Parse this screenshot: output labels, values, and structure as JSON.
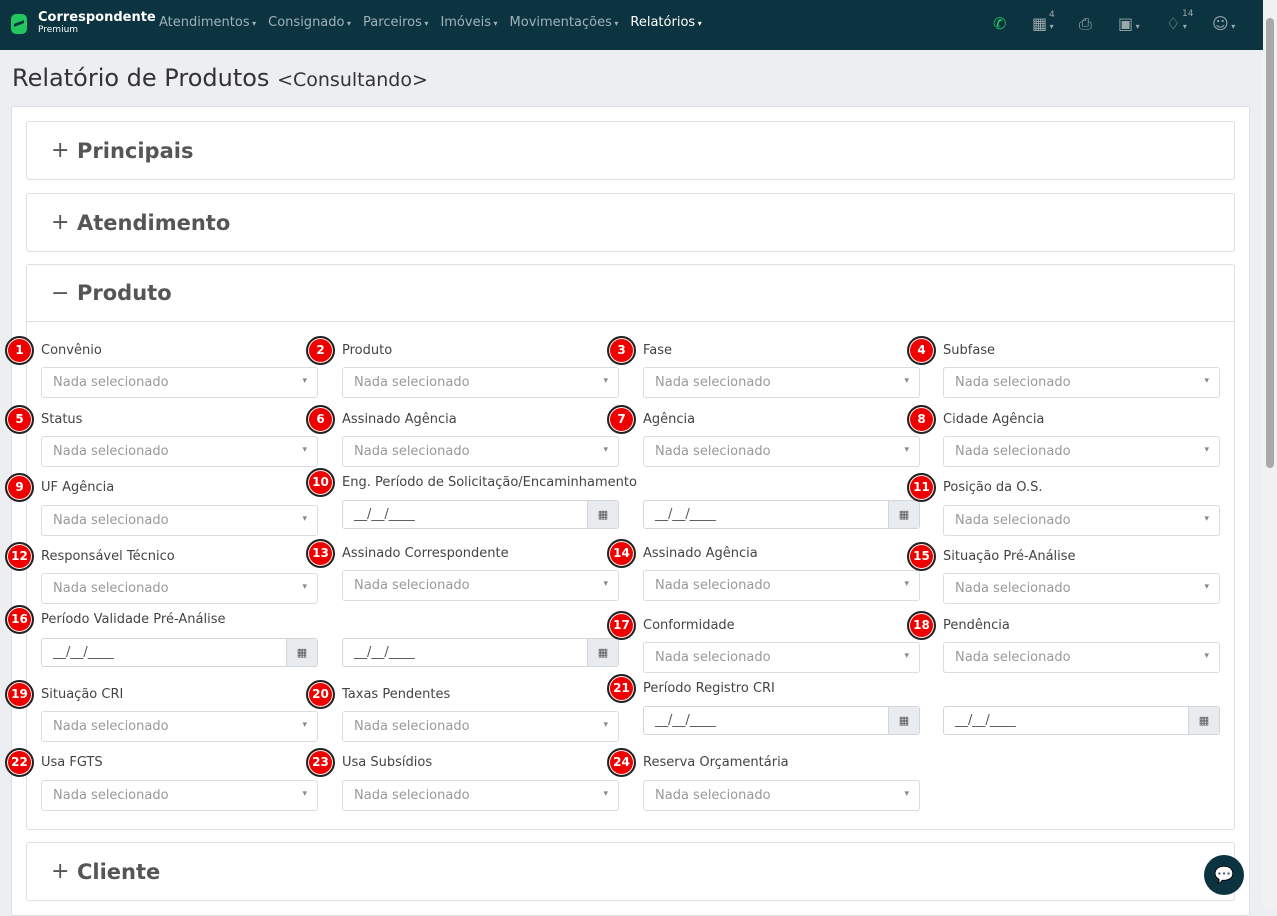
{
  "nav": {
    "brand": "Correspondente",
    "brand_sub": "Premium",
    "menu": [
      "Atendimentos",
      "Consignado",
      "Parceiros",
      "Imóveis",
      "Movimentações",
      "Relatórios"
    ],
    "active": "Relatórios",
    "calendar_count": "4",
    "notification_count": "14",
    "icons": [
      "whatsapp-icon",
      "calendar-icon",
      "printer-icon",
      "gift-icon",
      "bell-icon",
      "user-icon"
    ]
  },
  "page": {
    "title": "Relatório de Produtos",
    "subtitle": "<Consultando>"
  },
  "sections": {
    "principais": "Principais",
    "atendimento": "Atendimento",
    "produto": "Produto",
    "cliente": "Cliente"
  },
  "placeholder": "Nada selecionado",
  "date_placeholder": "__/__/____",
  "fields": [
    {
      "n": "1",
      "label": "Convênio",
      "type": "select"
    },
    {
      "n": "2",
      "label": "Produto",
      "type": "select"
    },
    {
      "n": "3",
      "label": "Fase",
      "type": "select"
    },
    {
      "n": "4",
      "label": "Subfase",
      "type": "select"
    },
    {
      "n": "5",
      "label": "Status",
      "type": "select"
    },
    {
      "n": "6",
      "label": "Assinado Agência",
      "type": "select"
    },
    {
      "n": "7",
      "label": "Agência",
      "type": "select"
    },
    {
      "n": "8",
      "label": "Cidade Agência",
      "type": "select"
    },
    {
      "n": "9",
      "label": "UF Agência",
      "type": "select"
    },
    {
      "n": "10",
      "label": "Eng. Período de Solicitação/Encaminhamento",
      "type": "daterange"
    },
    {
      "n": "11",
      "label": "Posição da O.S.",
      "type": "select"
    },
    {
      "n": "12",
      "label": "Responsável Técnico",
      "type": "select"
    },
    {
      "n": "13",
      "label": "Assinado Correspondente",
      "type": "select"
    },
    {
      "n": "14",
      "label": "Assinado Agência",
      "type": "select"
    },
    {
      "n": "15",
      "label": "Situação Pré-Análise",
      "type": "select"
    },
    {
      "n": "16",
      "label": "Período Validade Pré-Análise",
      "type": "daterange"
    },
    {
      "n": "17",
      "label": "Conformidade",
      "type": "select"
    },
    {
      "n": "18",
      "label": "Pendência",
      "type": "select"
    },
    {
      "n": "19",
      "label": "Situação CRI",
      "type": "select"
    },
    {
      "n": "20",
      "label": "Taxas Pendentes",
      "type": "select"
    },
    {
      "n": "21",
      "label": "Período Registro CRI",
      "type": "daterange"
    },
    {
      "n": "22",
      "label": "Usa FGTS",
      "type": "select"
    },
    {
      "n": "23",
      "label": "Usa Subsídios",
      "type": "select"
    },
    {
      "n": "24",
      "label": "Reserva Orçamentária",
      "type": "select"
    }
  ],
  "colors": {
    "navbar": "#0b3440",
    "badge": "#e00000",
    "whatsapp": "#22c55e"
  }
}
